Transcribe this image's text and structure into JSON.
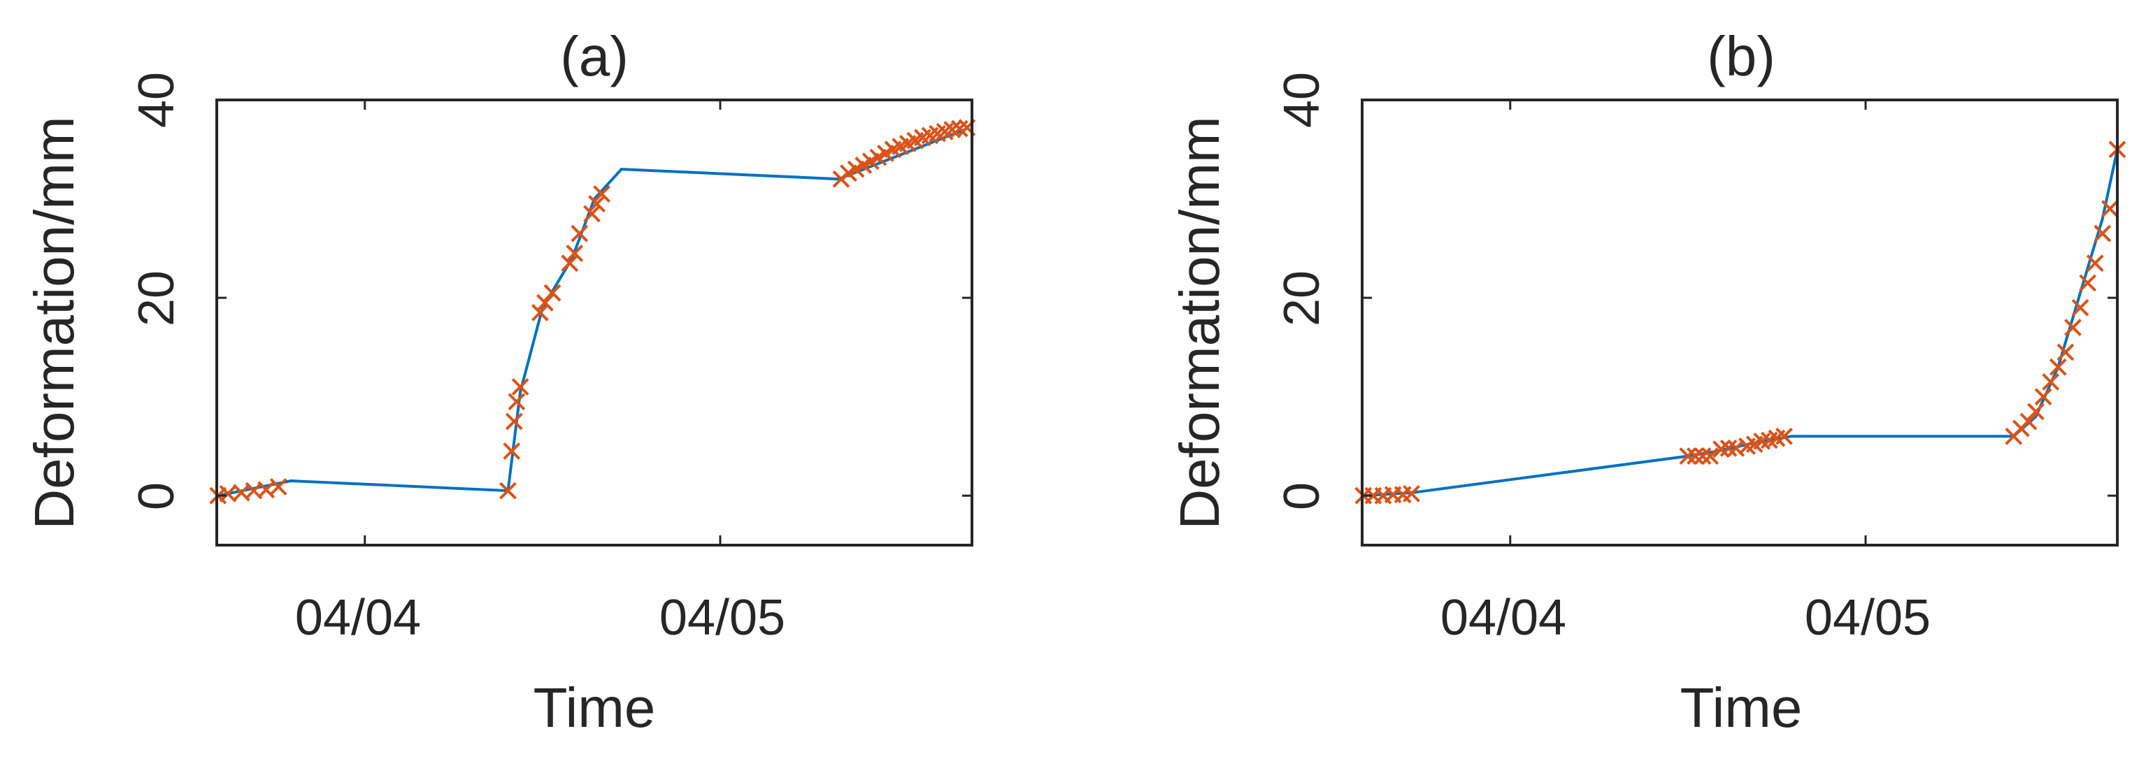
{
  "colors": {
    "line": "#0072BD",
    "marker": "#D95319",
    "axis": "#262626",
    "background": "#ffffff"
  },
  "chart_data": [
    {
      "type": "line",
      "title": "(a)",
      "xlabel": "Time",
      "ylabel": "Deformation/mm",
      "x_ticks": [
        "04/04",
        "04/05"
      ],
      "y_ticks": [
        "0",
        "20",
        "40"
      ],
      "ylim": [
        -5,
        40
      ],
      "grid": false,
      "line_series": {
        "x": [
          "04/03 14:05",
          "04/03 19:00",
          "04/04 09:40",
          "04/04 10:30",
          "04/04 12:00",
          "04/04 14:00",
          "04/04 15:30",
          "04/04 17:20",
          "04/05 08:00",
          "04/05 16:30"
        ],
        "y": [
          0.0,
          1.5,
          0.5,
          10.5,
          19.0,
          24.0,
          30.0,
          33.0,
          32.0,
          37.0
        ]
      },
      "marker_series": {
        "x": [
          "04/03 14:05",
          "04/03 14:45",
          "04/03 15:40",
          "04/03 16:30",
          "04/03 17:20",
          "04/03 18:10",
          "04/04 09:40",
          "04/04 09:55",
          "04/04 10:05",
          "04/04 10:15",
          "04/04 10:30",
          "04/04 11:50",
          "04/04 12:10",
          "04/04 12:40",
          "04/04 13:50",
          "04/04 14:10",
          "04/04 14:30",
          "04/04 15:20",
          "04/04 15:40",
          "04/04 16:00",
          "04/05 08:10",
          "04/05 08:40",
          "04/05 09:10",
          "04/05 09:40",
          "04/05 10:10",
          "04/05 10:40",
          "04/05 11:10",
          "04/05 11:40",
          "04/05 12:10",
          "04/05 12:40",
          "04/05 13:10",
          "04/05 13:40",
          "04/05 14:10",
          "04/05 14:40",
          "04/05 15:10",
          "04/05 15:40",
          "04/05 16:10",
          "04/05 16:40"
        ],
        "y": [
          0.0,
          0.2,
          0.3,
          0.5,
          0.6,
          0.9,
          0.5,
          4.5,
          7.5,
          9.5,
          11.0,
          18.5,
          19.5,
          20.5,
          23.5,
          24.5,
          26.5,
          28.5,
          29.5,
          30.5,
          32.0,
          32.6,
          33.0,
          33.4,
          33.8,
          34.2,
          34.6,
          35.0,
          35.3,
          35.6,
          35.9,
          36.2,
          36.4,
          36.6,
          36.8,
          37.0,
          37.1,
          37.2
        ]
      }
    },
    {
      "type": "line",
      "title": "(b)",
      "xlabel": "Time",
      "ylabel": "Deformation/mm",
      "x_ticks": [
        "04/04",
        "04/05"
      ],
      "y_ticks": [
        "0",
        "20",
        "40"
      ],
      "ylim": [
        -5,
        40
      ],
      "grid": false,
      "line_series": {
        "x": [
          "04/03 14:05",
          "04/03 17:20",
          "04/04 12:00",
          "04/04 14:00",
          "04/04 17:00",
          "04/04 19:00",
          "04/05 10:00",
          "04/05 11:30",
          "04/05 13:00",
          "04/05 14:00",
          "04/05 15:00",
          "04/05 16:00",
          "04/05 17:00"
        ],
        "y": [
          0.0,
          0.3,
          4.0,
          4.5,
          5.5,
          6.0,
          6.0,
          8.0,
          13.0,
          18.0,
          23.0,
          28.0,
          35.0
        ]
      },
      "marker_series": {
        "x": [
          "04/03 14:05",
          "04/03 14:45",
          "04/03 15:25",
          "04/03 16:05",
          "04/03 16:45",
          "04/03 17:20",
          "04/04 12:00",
          "04/04 12:30",
          "04/04 13:00",
          "04/04 13:30",
          "04/04 14:15",
          "04/04 14:45",
          "04/04 15:15",
          "04/04 16:00",
          "04/04 16:30",
          "04/04 17:00",
          "04/04 17:30",
          "04/04 18:00",
          "04/04 18:30",
          "04/05 10:00",
          "04/05 10:30",
          "04/05 11:00",
          "04/05 11:30",
          "04/05 12:00",
          "04/05 12:30",
          "04/05 13:00",
          "04/05 13:30",
          "04/05 14:00",
          "04/05 14:30",
          "04/05 15:00",
          "04/05 15:30",
          "04/05 16:00",
          "04/05 16:30",
          "04/05 17:00"
        ],
        "y": [
          0.0,
          0.0,
          0.0,
          0.1,
          0.1,
          0.2,
          4.0,
          4.0,
          4.0,
          4.0,
          4.7,
          4.8,
          4.8,
          5.0,
          5.2,
          5.5,
          5.6,
          5.8,
          6.0,
          6.0,
          6.8,
          7.5,
          8.5,
          10.0,
          11.5,
          13.0,
          14.5,
          17.0,
          19.0,
          21.5,
          23.5,
          26.5,
          29.0,
          35.0
        ]
      }
    }
  ]
}
